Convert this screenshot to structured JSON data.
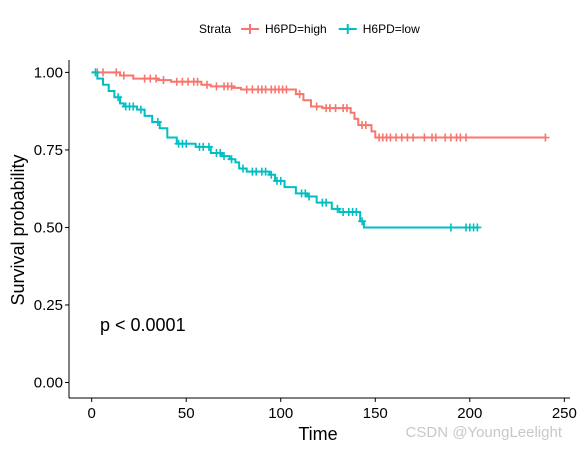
{
  "chart_data": {
    "type": "line",
    "xlabel": "Time",
    "ylabel": "Survival probability",
    "xlim": [
      -12,
      253
    ],
    "ylim": [
      -0.05,
      1.04
    ],
    "xticks": [
      0,
      50,
      100,
      150,
      200,
      250
    ],
    "yticks": [
      0.0,
      0.25,
      0.5,
      0.75,
      1.0
    ],
    "ytick_labels": [
      "0.00",
      "0.25",
      "0.50",
      "0.75",
      "1.00"
    ],
    "grid": false,
    "legend": {
      "title": "Strata",
      "position": "top"
    },
    "annotation": "p < 0.0001",
    "series": [
      {
        "name": "H6PD=high",
        "color": "#F8766D",
        "steps": [
          [
            0,
            1.0
          ],
          [
            15,
            0.99
          ],
          [
            22,
            0.98
          ],
          [
            35,
            0.975
          ],
          [
            42,
            0.97
          ],
          [
            58,
            0.96
          ],
          [
            63,
            0.955
          ],
          [
            75,
            0.95
          ],
          [
            79,
            0.945
          ],
          [
            108,
            0.93
          ],
          [
            112,
            0.91
          ],
          [
            116,
            0.89
          ],
          [
            122,
            0.885
          ],
          [
            137,
            0.87
          ],
          [
            139,
            0.85
          ],
          [
            141,
            0.83
          ],
          [
            148,
            0.81
          ],
          [
            150,
            0.79
          ],
          [
            240,
            0.79
          ]
        ],
        "censor_times": [
          3,
          6,
          13,
          17,
          28,
          31,
          34,
          38,
          45,
          48,
          51,
          54,
          56,
          61,
          66,
          70,
          72,
          74,
          82,
          85,
          88,
          90,
          92,
          95,
          97,
          99,
          101,
          103,
          110,
          119,
          124,
          126,
          129,
          133,
          135,
          143,
          145,
          152,
          154,
          156,
          158,
          161,
          164,
          167,
          170,
          176,
          180,
          182,
          187,
          190,
          193,
          195,
          198,
          240
        ]
      },
      {
        "name": "H6PD=low",
        "color": "#00BFC4",
        "steps": [
          [
            0,
            1.0
          ],
          [
            3,
            0.98
          ],
          [
            6,
            0.96
          ],
          [
            9,
            0.94
          ],
          [
            12,
            0.92
          ],
          [
            15,
            0.9
          ],
          [
            17,
            0.89
          ],
          [
            24,
            0.88
          ],
          [
            28,
            0.86
          ],
          [
            32,
            0.84
          ],
          [
            36,
            0.82
          ],
          [
            40,
            0.79
          ],
          [
            45,
            0.77
          ],
          [
            55,
            0.76
          ],
          [
            63,
            0.74
          ],
          [
            69,
            0.73
          ],
          [
            73,
            0.72
          ],
          [
            76,
            0.71
          ],
          [
            78,
            0.69
          ],
          [
            82,
            0.68
          ],
          [
            94,
            0.67
          ],
          [
            97,
            0.65
          ],
          [
            102,
            0.63
          ],
          [
            108,
            0.61
          ],
          [
            114,
            0.6
          ],
          [
            119,
            0.58
          ],
          [
            127,
            0.56
          ],
          [
            131,
            0.55
          ],
          [
            142,
            0.52
          ],
          [
            144,
            0.5
          ],
          [
            205,
            0.5
          ]
        ],
        "censor_times": [
          2,
          14,
          18,
          20,
          22,
          26,
          35,
          46,
          48,
          50,
          57,
          59,
          62,
          66,
          68,
          70,
          74,
          80,
          85,
          87,
          90,
          92,
          95,
          98,
          100,
          111,
          113,
          115,
          122,
          124,
          130,
          133,
          136,
          138,
          140,
          143,
          190,
          198,
          200,
          202,
          204
        ]
      }
    ]
  },
  "watermark": "CSDN @YoungLeelight",
  "colors": {
    "background": "#ffffff",
    "axis": "#000000"
  }
}
